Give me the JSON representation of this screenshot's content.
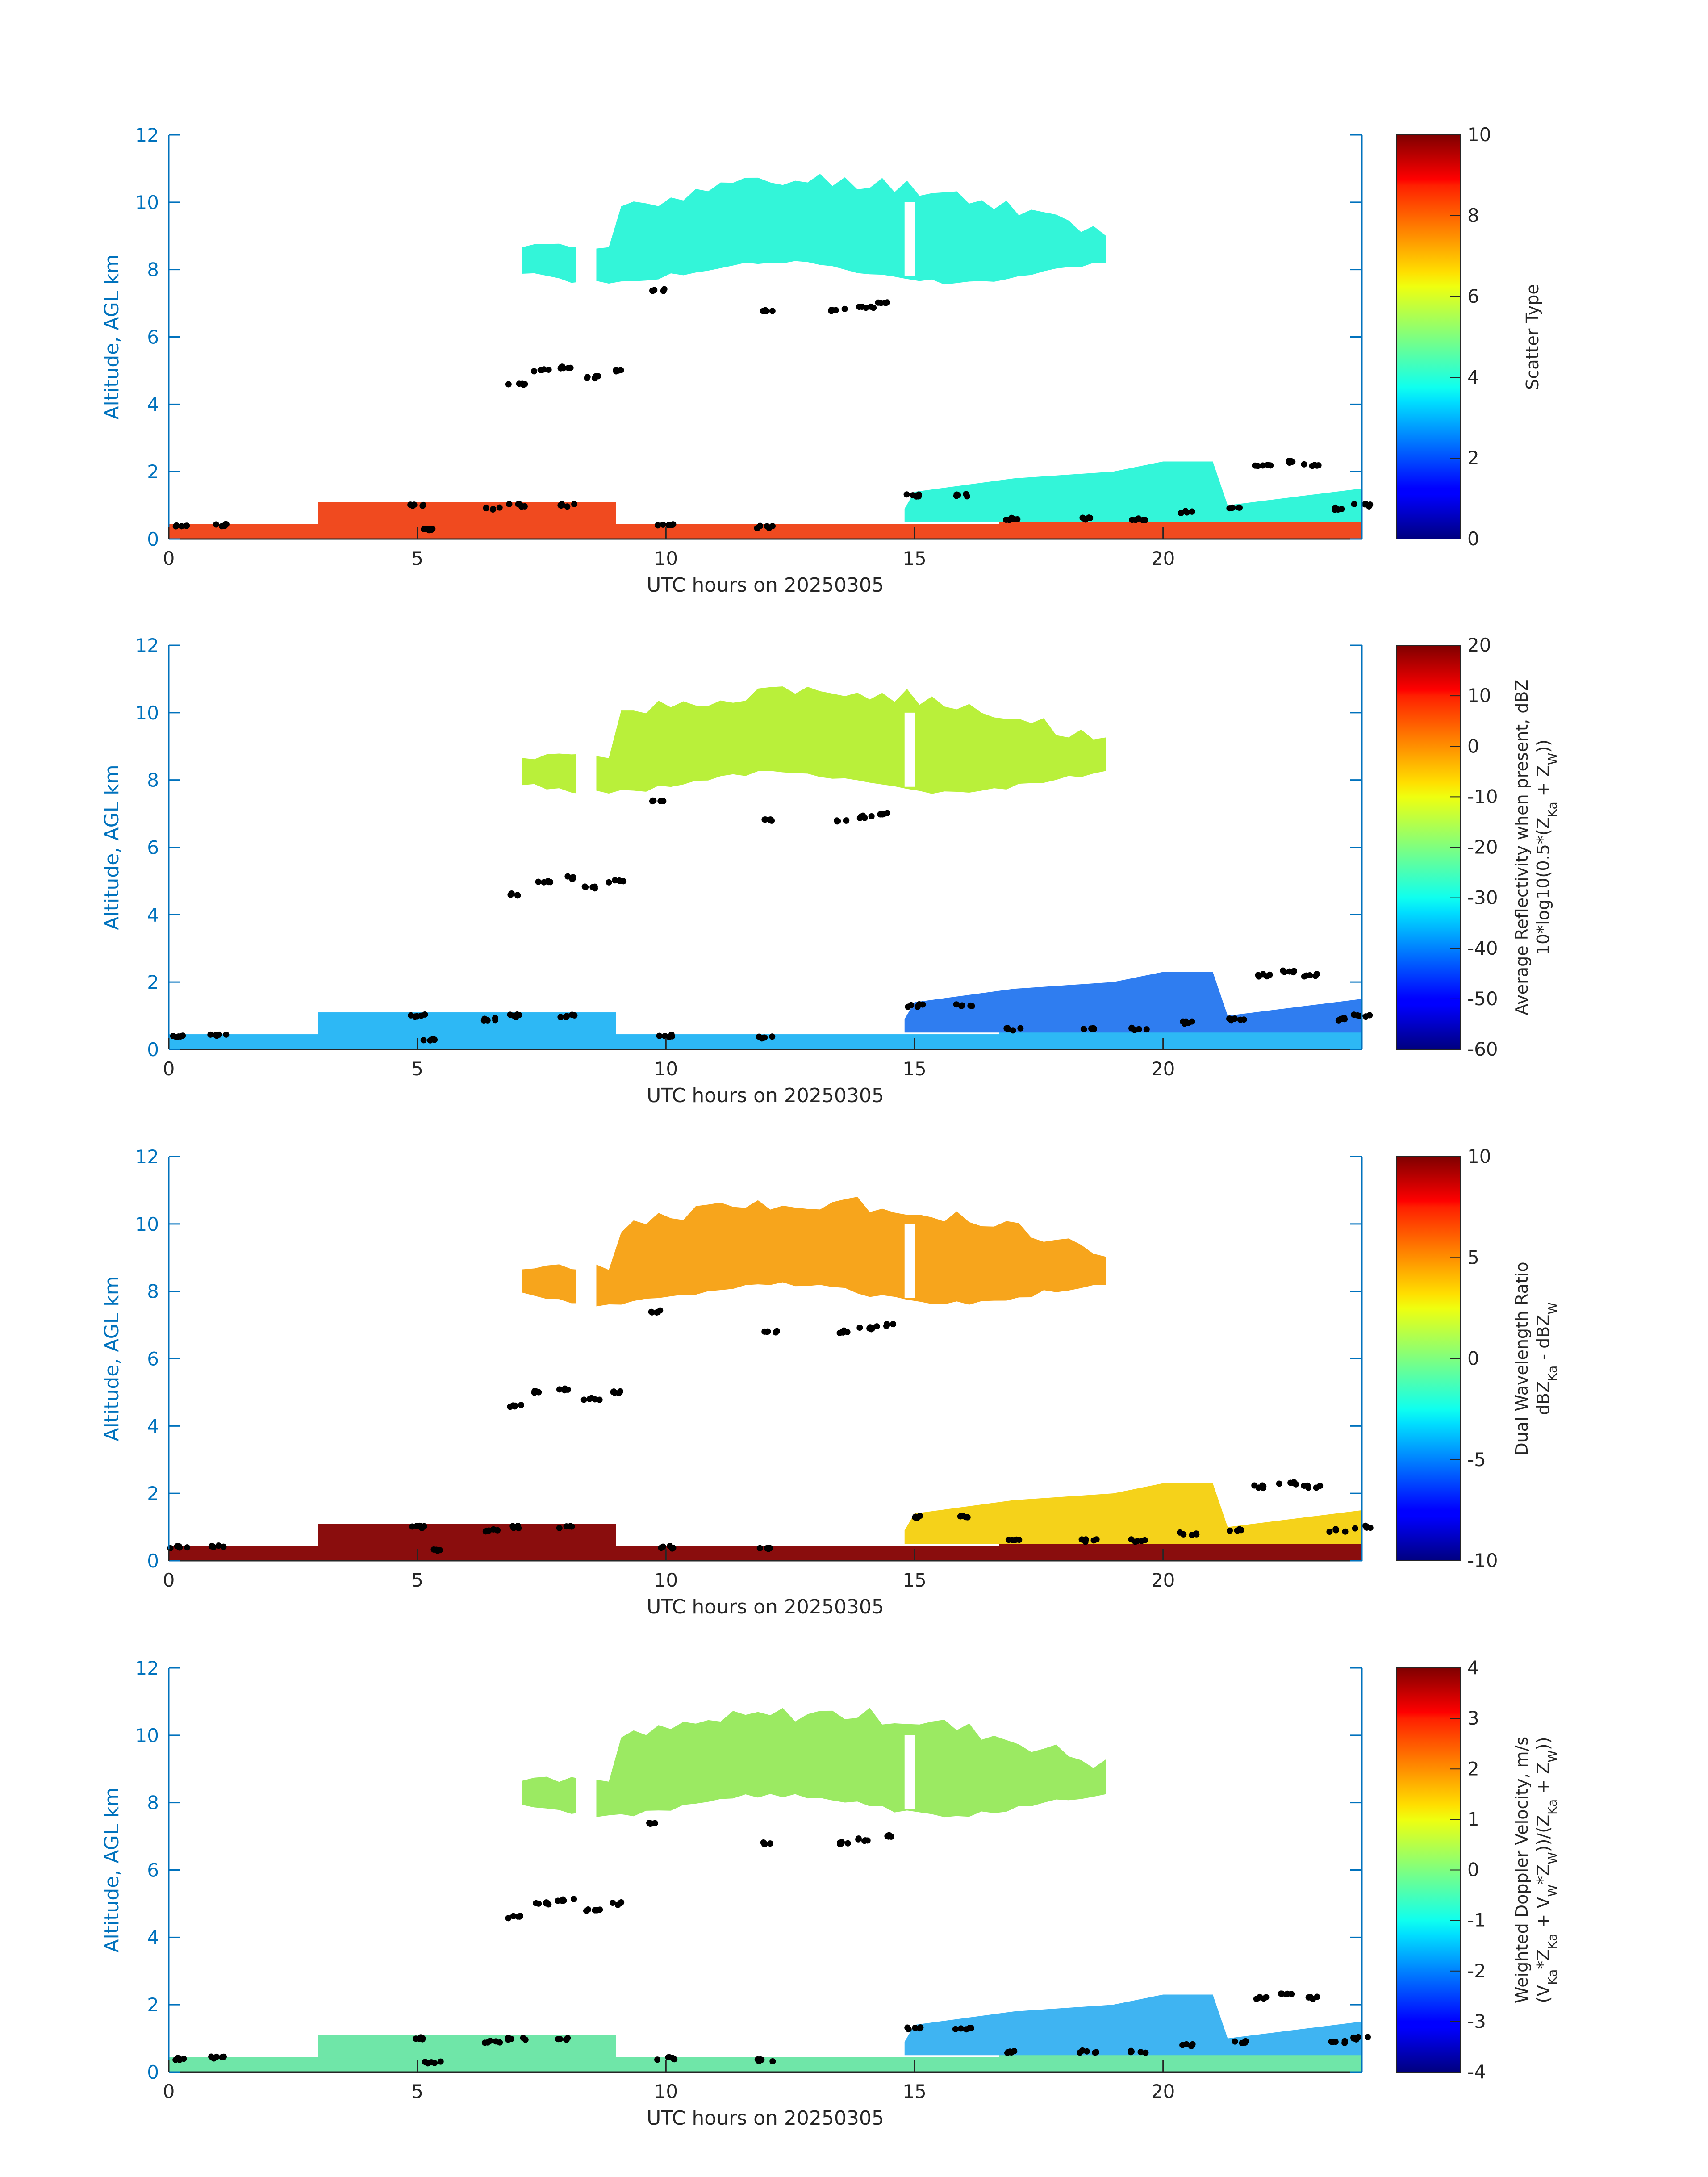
{
  "figure": {
    "colors": {
      "axis_blue": "#0072BD",
      "text_black": "#262626",
      "dots": "#000000"
    },
    "panels": [
      {
        "id": "scatter-type",
        "ylabel": "Altitude, AGL km",
        "xlabel": "UTC hours on 20250305",
        "xticks": [
          0,
          5,
          10,
          15,
          20
        ],
        "yticks": [
          0,
          2,
          4,
          6,
          8,
          10,
          12
        ],
        "xlim": [
          0,
          24
        ],
        "ylim": [
          0,
          12
        ],
        "colorbar": {
          "label_lines": [
            "Scatter Type"
          ],
          "ticks": [
            "10",
            "8",
            "6",
            "4",
            "2",
            "0"
          ],
          "range": [
            0,
            10
          ]
        },
        "fill": {
          "upper_cloud": "#33F5D9",
          "low_layer": "#F04A1F",
          "low_cloud_top": "#33F5D9"
        }
      },
      {
        "id": "reflectivity",
        "ylabel": "Altitude, AGL km",
        "xlabel": "UTC hours on 20250305",
        "xticks": [
          0,
          5,
          10,
          15,
          20
        ],
        "yticks": [
          0,
          2,
          4,
          6,
          8,
          10,
          12
        ],
        "xlim": [
          0,
          24
        ],
        "ylim": [
          0,
          12
        ],
        "colorbar": {
          "label_lines": [
            "Average Reflectivity when present, dBZ",
            "10*log10(0.5*(Z",
            "Ka",
            " + Z",
            "W",
            "))"
          ],
          "ticks": [
            "20",
            "10",
            "0",
            "-10",
            "-20",
            "-30",
            "-40",
            "-50",
            "-60"
          ],
          "range": [
            -60,
            20
          ]
        },
        "fill": {
          "upper_cloud": "#B9F03A",
          "low_layer": "#2DB8F5",
          "low_cloud_top": "#2F7DF0"
        }
      },
      {
        "id": "dwr",
        "ylabel": "Altitude, AGL km",
        "xlabel": "UTC hours on 20250305",
        "xticks": [
          0,
          5,
          10,
          15,
          20
        ],
        "yticks": [
          0,
          2,
          4,
          6,
          8,
          10,
          12
        ],
        "xlim": [
          0,
          24
        ],
        "ylim": [
          0,
          12
        ],
        "colorbar": {
          "label_lines": [
            "Dual Wavelength Ratio",
            "dBZ",
            "Ka",
            " - dBZ",
            "W"
          ],
          "ticks": [
            "10",
            "5",
            "0",
            "-5",
            "-10"
          ],
          "range": [
            -10,
            10
          ]
        },
        "fill": {
          "upper_cloud": "#F7A51C",
          "low_layer": "#8A0D0D",
          "low_cloud_top": "#F5D21A"
        }
      },
      {
        "id": "doppler",
        "ylabel": "Altitude, AGL km",
        "xlabel": "UTC hours on 20250305",
        "xticks": [
          0,
          5,
          10,
          15,
          20
        ],
        "yticks": [
          0,
          2,
          4,
          6,
          8,
          10,
          12
        ],
        "xlim": [
          0,
          24
        ],
        "ylim": [
          0,
          12
        ],
        "colorbar": {
          "label_lines": [
            "Weighted Doppler Velocity, m/s",
            "(V",
            "Ka",
            "*Z",
            "Ka",
            " + V",
            "W",
            "*Z",
            "W",
            "))/(Z",
            "Ka",
            " + Z",
            "W",
            "))"
          ],
          "ticks": [
            "4",
            "3",
            "2",
            "1",
            "0",
            "-1",
            "-2",
            "-3",
            "-4"
          ],
          "range": [
            -4,
            4
          ]
        },
        "fill": {
          "upper_cloud": "#9BEA62",
          "low_layer": "#6FE6A8",
          "low_cloud_top": "#3FB4F2"
        }
      }
    ],
    "chart_data": [
      {
        "type": "heatmap",
        "title": "",
        "xlabel": "UTC hours on 20250305",
        "ylabel": "Altitude, AGL km",
        "xlim": [
          0,
          24
        ],
        "ylim": [
          0,
          12
        ],
        "colorbar_label": "Scatter Type",
        "colorbar_range": [
          0,
          10
        ],
        "regions": [
          {
            "name": "upper cloud",
            "x": [
              7.1,
              19
            ],
            "y": [
              7.7,
              11.0
            ],
            "value": 4
          },
          {
            "name": "low layer",
            "x": [
              0,
              24
            ],
            "y": [
              0,
              1.1
            ],
            "value": 9
          }
        ],
        "cloud_base_points": [
          [
            0.2,
            0.4
          ],
          [
            1,
            0.42
          ],
          [
            5,
            1.0
          ],
          [
            5.3,
            0.3
          ],
          [
            6.5,
            0.9
          ],
          [
            7,
            1.0
          ],
          [
            8,
            1.0
          ],
          [
            7,
            4.6
          ],
          [
            7.5,
            5.0
          ],
          [
            8,
            5.1
          ],
          [
            8.5,
            4.8
          ],
          [
            9,
            5.0
          ],
          [
            9.8,
            7.4
          ],
          [
            12.1,
            6.8
          ],
          [
            13.5,
            6.8
          ],
          [
            14,
            6.9
          ],
          [
            14.4,
            7.0
          ],
          [
            10,
            0.4
          ],
          [
            12,
            0.35
          ],
          [
            15,
            1.3
          ],
          [
            16,
            1.3
          ],
          [
            17,
            0.6
          ],
          [
            18.5,
            0.6
          ],
          [
            19.5,
            0.6
          ],
          [
            20.5,
            0.8
          ],
          [
            21.5,
            0.9
          ],
          [
            22,
            2.2
          ],
          [
            22.5,
            2.3
          ],
          [
            23,
            2.2
          ],
          [
            23.5,
            0.9
          ],
          [
            24,
            1.0
          ]
        ]
      },
      {
        "type": "heatmap",
        "title": "",
        "xlabel": "UTC hours on 20250305",
        "ylabel": "Altitude, AGL km",
        "xlim": [
          0,
          24
        ],
        "ylim": [
          0,
          12
        ],
        "colorbar_label": "Average Reflectivity when present, dBZ 10*log10(0.5*(Z Ka + Z W))",
        "colorbar_range": [
          -60,
          20
        ],
        "regions": [
          {
            "name": "upper cloud",
            "x": [
              7.1,
              19
            ],
            "y": [
              7.7,
              11.0
            ],
            "value": -12
          },
          {
            "name": "low layer",
            "x": [
              0,
              24
            ],
            "y": [
              0,
              1.1
            ],
            "value": -35
          }
        ]
      },
      {
        "type": "heatmap",
        "title": "",
        "xlabel": "UTC hours on 20250305",
        "ylabel": "Altitude, AGL km",
        "xlim": [
          0,
          24
        ],
        "ylim": [
          0,
          12
        ],
        "colorbar_label": "Dual Wavelength Ratio dBZ Ka - dBZ W",
        "colorbar_range": [
          -10,
          10
        ],
        "regions": [
          {
            "name": "upper cloud",
            "x": [
              7.1,
              19
            ],
            "y": [
              7.7,
              11.0
            ],
            "value": 5
          },
          {
            "name": "low layer",
            "x": [
              0,
              24
            ],
            "y": [
              0,
              1.1
            ],
            "value": 10
          }
        ]
      },
      {
        "type": "heatmap",
        "title": "",
        "xlabel": "UTC hours on 20250305",
        "ylabel": "Altitude, AGL km",
        "xlim": [
          0,
          24
        ],
        "ylim": [
          0,
          12
        ],
        "colorbar_label": "Weighted Doppler Velocity, m/s (V Ka *Z Ka + V W *Z W ))/(Z Ka + Z W ))",
        "colorbar_range": [
          -4,
          4
        ],
        "regions": [
          {
            "name": "upper cloud",
            "x": [
              7.1,
              19
            ],
            "y": [
              7.7,
              11.0
            ],
            "value": 0.6
          },
          {
            "name": "low layer",
            "x": [
              0,
              24
            ],
            "y": [
              0,
              1.1
            ],
            "value": -0.3
          }
        ]
      }
    ]
  }
}
